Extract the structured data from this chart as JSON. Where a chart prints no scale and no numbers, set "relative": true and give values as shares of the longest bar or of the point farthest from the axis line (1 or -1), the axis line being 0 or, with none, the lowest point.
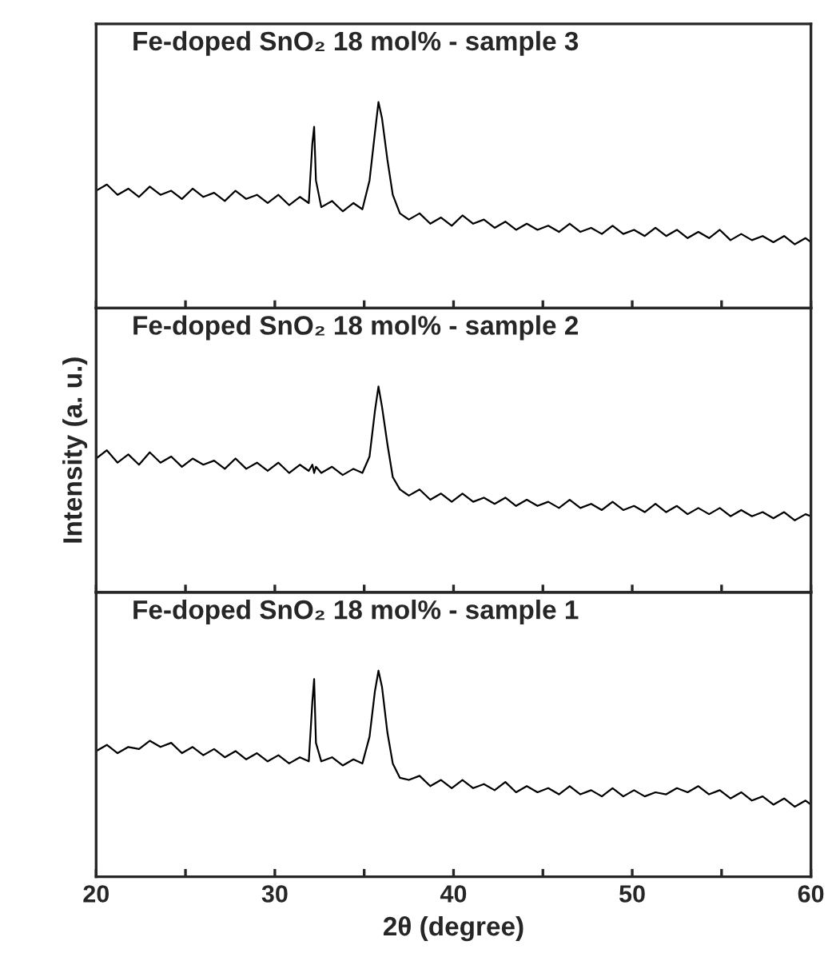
{
  "chart_data": [
    {
      "type": "line",
      "title": "Fe-doped SnO₂ 18 mol% - sample 3",
      "relative": true,
      "tick_labels": false,
      "grid": false,
      "xlim": [
        20,
        60
      ],
      "xticks": [
        20,
        {
          "value": 25,
          "label": null
        },
        30,
        {
          "value": 35,
          "label": null
        },
        40,
        {
          "value": 45,
          "label": null
        },
        50,
        {
          "value": 55,
          "label": null
        },
        60
      ],
      "series": [
        {
          "color": "#000000",
          "x": [
            20,
            20.6,
            21.2,
            21.8,
            22.4,
            23,
            23.6,
            24.2,
            24.8,
            25.4,
            26,
            26.6,
            27.2,
            27.8,
            28.4,
            29,
            29.6,
            30.2,
            30.8,
            31.4,
            31.9,
            32.1,
            32.2,
            32.3,
            32.6,
            33.2,
            33.8,
            34.4,
            34.9,
            35.3,
            35.6,
            35.8,
            36.0,
            36.3,
            36.6,
            37.0,
            37.5,
            38.1,
            38.7,
            39.3,
            39.9,
            40.5,
            41.1,
            41.7,
            42.3,
            42.9,
            43.5,
            44.1,
            44.7,
            45.3,
            45.9,
            46.5,
            47.1,
            47.7,
            48.3,
            48.9,
            49.5,
            50.1,
            50.7,
            51.3,
            51.9,
            52.5,
            53.1,
            53.7,
            54.3,
            54.9,
            55.5,
            56.1,
            56.7,
            57.3,
            57.9,
            58.5,
            59.1,
            59.7,
            60
          ],
          "values": [
            0.57,
            0.6,
            0.55,
            0.58,
            0.54,
            0.59,
            0.55,
            0.57,
            0.53,
            0.58,
            0.54,
            0.56,
            0.52,
            0.57,
            0.53,
            0.55,
            0.51,
            0.55,
            0.5,
            0.54,
            0.51,
            0.8,
            0.88,
            0.62,
            0.49,
            0.52,
            0.47,
            0.51,
            0.48,
            0.62,
            0.85,
            1.0,
            0.92,
            0.72,
            0.55,
            0.46,
            0.43,
            0.46,
            0.41,
            0.44,
            0.4,
            0.45,
            0.41,
            0.43,
            0.39,
            0.42,
            0.38,
            0.41,
            0.38,
            0.4,
            0.37,
            0.41,
            0.37,
            0.39,
            0.36,
            0.4,
            0.36,
            0.38,
            0.35,
            0.39,
            0.35,
            0.38,
            0.34,
            0.37,
            0.34,
            0.38,
            0.33,
            0.36,
            0.33,
            0.35,
            0.32,
            0.35,
            0.31,
            0.34,
            0.32
          ]
        }
      ]
    },
    {
      "type": "line",
      "title": "Fe-doped SnO₂ 18 mol% - sample 2",
      "ylabel": "Intensity (a. u.)",
      "relative": true,
      "tick_labels": false,
      "grid": false,
      "xlim": [
        20,
        60
      ],
      "xticks": [
        20,
        {
          "value": 25,
          "label": null
        },
        30,
        {
          "value": 35,
          "label": null
        },
        40,
        {
          "value": 45,
          "label": null
        },
        50,
        {
          "value": 55,
          "label": null
        },
        60
      ],
      "series": [
        {
          "color": "#000000",
          "x": [
            20,
            20.6,
            21.2,
            21.8,
            22.4,
            23,
            23.6,
            24.2,
            24.8,
            25.4,
            26,
            26.6,
            27.2,
            27.8,
            28.4,
            29,
            29.6,
            30.2,
            30.8,
            31.4,
            31.9,
            32.1,
            32.2,
            32.3,
            32.6,
            33.2,
            33.8,
            34.4,
            34.9,
            35.3,
            35.6,
            35.8,
            36.0,
            36.3,
            36.6,
            37.0,
            37.5,
            38.1,
            38.7,
            39.3,
            39.9,
            40.5,
            41.1,
            41.7,
            42.3,
            42.9,
            43.5,
            44.1,
            44.7,
            45.3,
            45.9,
            46.5,
            47.1,
            47.7,
            48.3,
            48.9,
            49.5,
            50.1,
            50.7,
            51.3,
            51.9,
            52.5,
            53.1,
            53.7,
            54.3,
            54.9,
            55.5,
            56.1,
            56.7,
            57.3,
            57.9,
            58.5,
            59.1,
            59.7,
            60
          ],
          "values": [
            0.65,
            0.69,
            0.63,
            0.67,
            0.62,
            0.68,
            0.63,
            0.66,
            0.61,
            0.65,
            0.62,
            0.64,
            0.6,
            0.65,
            0.6,
            0.63,
            0.59,
            0.63,
            0.58,
            0.62,
            0.59,
            0.62,
            0.58,
            0.61,
            0.58,
            0.61,
            0.57,
            0.6,
            0.58,
            0.66,
            0.88,
            1.0,
            0.9,
            0.72,
            0.56,
            0.5,
            0.47,
            0.5,
            0.45,
            0.48,
            0.44,
            0.48,
            0.44,
            0.46,
            0.43,
            0.46,
            0.42,
            0.45,
            0.42,
            0.44,
            0.41,
            0.45,
            0.41,
            0.43,
            0.4,
            0.44,
            0.4,
            0.42,
            0.39,
            0.43,
            0.39,
            0.42,
            0.38,
            0.41,
            0.38,
            0.41,
            0.37,
            0.4,
            0.37,
            0.39,
            0.36,
            0.39,
            0.35,
            0.38,
            0.37
          ]
        }
      ]
    },
    {
      "type": "line",
      "title": "Fe-doped SnO₂ 18 mol% - sample 1",
      "xlabel": "2θ (degree)",
      "relative": true,
      "tick_labels": "x",
      "grid": false,
      "xlim": [
        20,
        60
      ],
      "xticks": [
        20,
        {
          "value": 25,
          "label": null
        },
        30,
        {
          "value": 35,
          "label": null
        },
        40,
        {
          "value": 45,
          "label": null
        },
        50,
        {
          "value": 55,
          "label": null
        },
        60
      ],
      "series": [
        {
          "color": "#000000",
          "x": [
            20,
            20.6,
            21.2,
            21.8,
            22.4,
            23,
            23.6,
            24.2,
            24.8,
            25.4,
            26,
            26.6,
            27.2,
            27.8,
            28.4,
            29,
            29.6,
            30.2,
            30.8,
            31.4,
            31.9,
            32.1,
            32.2,
            32.3,
            32.6,
            33.2,
            33.8,
            34.4,
            34.9,
            35.3,
            35.6,
            35.8,
            36.0,
            36.3,
            36.6,
            37.0,
            37.5,
            38.1,
            38.7,
            39.3,
            39.9,
            40.5,
            41.1,
            41.7,
            42.3,
            42.9,
            43.5,
            44.1,
            44.7,
            45.3,
            45.9,
            46.5,
            47.1,
            47.7,
            48.3,
            48.9,
            49.5,
            50.1,
            50.7,
            51.3,
            51.9,
            52.5,
            53.1,
            53.7,
            54.3,
            54.9,
            55.5,
            56.1,
            56.7,
            57.3,
            57.9,
            58.5,
            59.1,
            59.7,
            60
          ],
          "values": [
            0.61,
            0.64,
            0.6,
            0.63,
            0.62,
            0.66,
            0.63,
            0.65,
            0.6,
            0.63,
            0.59,
            0.62,
            0.58,
            0.61,
            0.57,
            0.6,
            0.56,
            0.59,
            0.55,
            0.58,
            0.56,
            0.85,
            0.96,
            0.65,
            0.56,
            0.58,
            0.54,
            0.57,
            0.55,
            0.68,
            0.9,
            1.0,
            0.92,
            0.7,
            0.55,
            0.48,
            0.47,
            0.49,
            0.44,
            0.47,
            0.43,
            0.47,
            0.43,
            0.45,
            0.42,
            0.46,
            0.41,
            0.44,
            0.41,
            0.43,
            0.4,
            0.44,
            0.4,
            0.42,
            0.39,
            0.43,
            0.39,
            0.42,
            0.39,
            0.41,
            0.4,
            0.43,
            0.41,
            0.44,
            0.4,
            0.42,
            0.38,
            0.41,
            0.37,
            0.39,
            0.35,
            0.38,
            0.34,
            0.37,
            0.35
          ]
        }
      ]
    }
  ]
}
